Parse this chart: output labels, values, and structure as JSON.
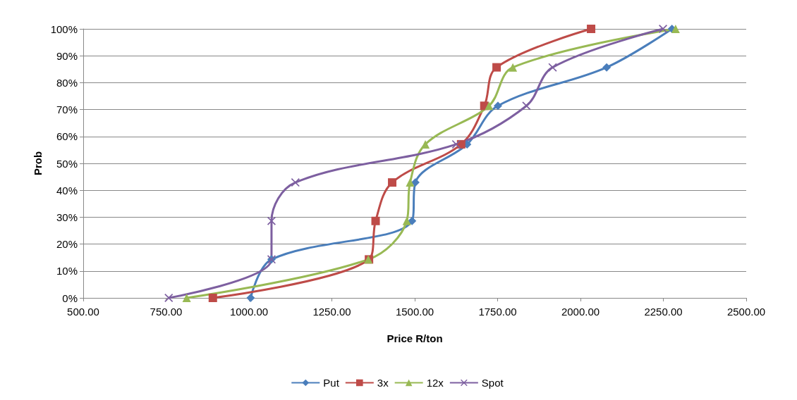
{
  "chart_data": {
    "type": "line",
    "xlabel": "Price R/ton",
    "ylabel": "Prob",
    "xlim": [
      500,
      2500
    ],
    "xticks": [
      {
        "value": 500,
        "label": "500.00"
      },
      {
        "value": 750,
        "label": "750.00"
      },
      {
        "value": 1000,
        "label": "1000.00"
      },
      {
        "value": 1250,
        "label": "1250.00"
      },
      {
        "value": 1500,
        "label": "1500.00"
      },
      {
        "value": 1750,
        "label": "1750.00"
      },
      {
        "value": 2000,
        "label": "2000.00"
      },
      {
        "value": 2250,
        "label": "2250.00"
      },
      {
        "value": 2500,
        "label": "2500.00"
      }
    ],
    "ylim": [
      0,
      100
    ],
    "yticks": [
      {
        "value": 0,
        "label": "0%"
      },
      {
        "value": 10,
        "label": "10%"
      },
      {
        "value": 20,
        "label": "20%"
      },
      {
        "value": 30,
        "label": "30%"
      },
      {
        "value": 40,
        "label": "40%"
      },
      {
        "value": 50,
        "label": "50%"
      },
      {
        "value": 60,
        "label": "60%"
      },
      {
        "value": 70,
        "label": "70%"
      },
      {
        "value": 80,
        "label": "80%"
      },
      {
        "value": 90,
        "label": "90%"
      },
      {
        "value": 100,
        "label": "100%"
      }
    ],
    "grid": "y",
    "legend": "bottom",
    "series": [
      {
        "name": "Put",
        "color": "#4a7ebb",
        "marker": "diamond",
        "x": [
          1005,
          1068,
          1492,
          1502,
          1658,
          1751,
          2079,
          2276
        ],
        "values": [
          0,
          14.3,
          28.6,
          42.9,
          57.1,
          71.4,
          85.7,
          100
        ]
      },
      {
        "name": "3x",
        "color": "#be4b48",
        "marker": "square",
        "x": [
          891,
          1362,
          1382,
          1432,
          1640,
          1710,
          1747,
          2032
        ],
        "values": [
          0,
          14.3,
          28.6,
          42.9,
          57.1,
          71.4,
          85.7,
          100
        ]
      },
      {
        "name": "12x",
        "color": "#98b954",
        "marker": "triangle",
        "x": [
          812,
          1360,
          1476,
          1486,
          1532,
          1724,
          1796,
          2287
        ],
        "values": [
          0,
          14.3,
          28.6,
          42.9,
          57.1,
          71.4,
          85.7,
          100
        ]
      },
      {
        "name": "Spot",
        "color": "#7d5fa0",
        "marker": "cross",
        "x": [
          758,
          1068,
          1068,
          1140,
          1625,
          1837,
          1916,
          2249
        ],
        "values": [
          0,
          14.3,
          28.6,
          42.9,
          57.1,
          71.4,
          85.7,
          100
        ]
      }
    ]
  }
}
